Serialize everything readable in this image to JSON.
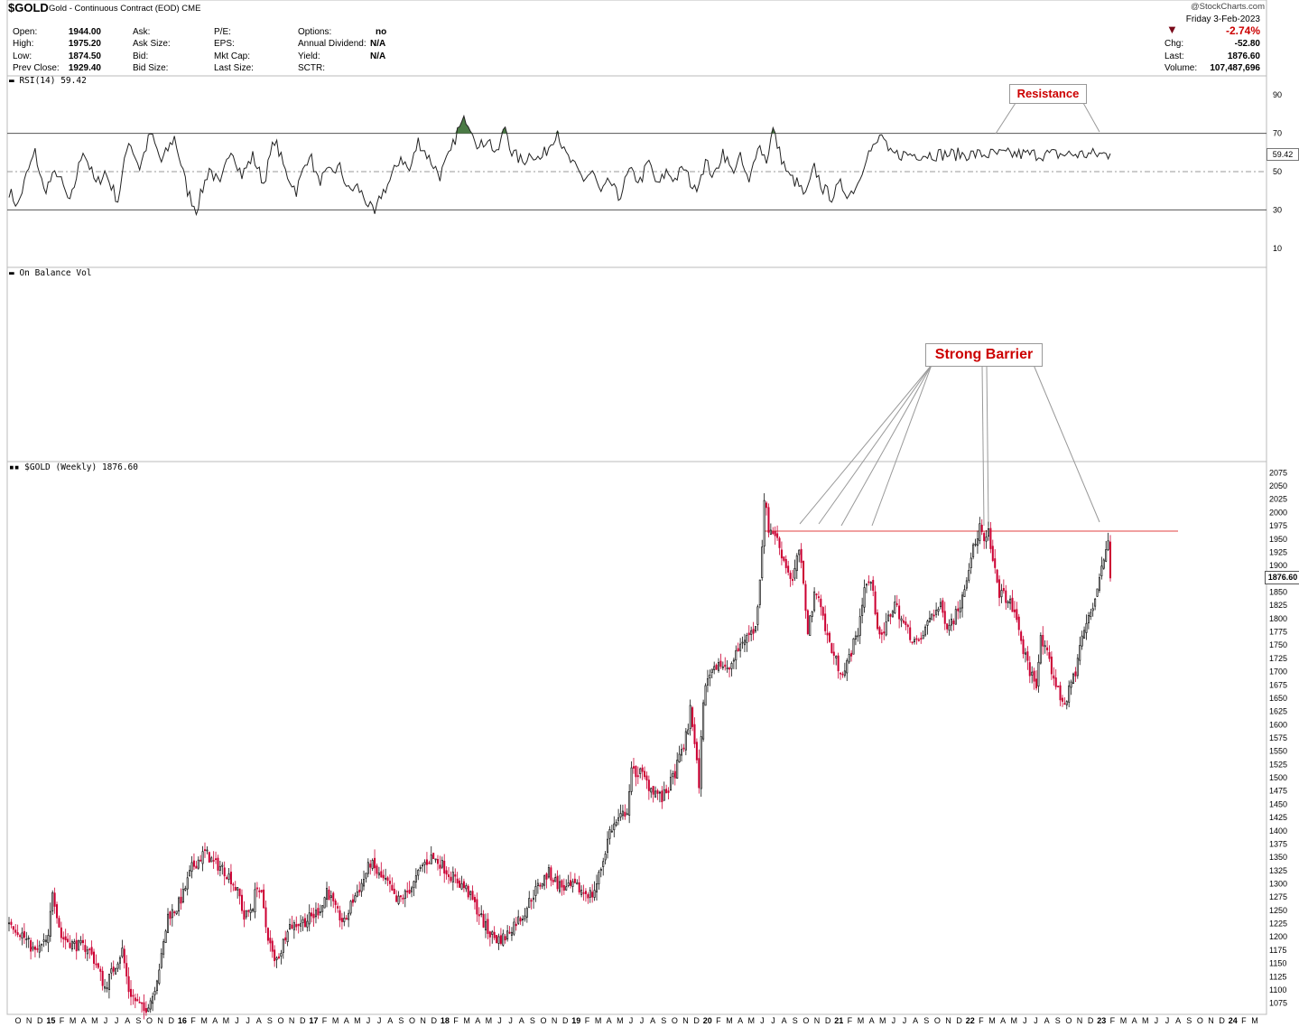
{
  "header": {
    "symbol": "$GOLD",
    "subtitle": "Gold - Continuous Contract (EOD)  CME",
    "brand": "@StockCharts.com",
    "date": "Friday  3-Feb-2023",
    "pct_change": "-2.74%",
    "col1": [
      [
        "Open:",
        "1944.00"
      ],
      [
        "High:",
        "1975.20"
      ],
      [
        "Low:",
        "1874.50"
      ],
      [
        "Prev Close:",
        "1929.40"
      ]
    ],
    "col2": [
      [
        "Ask:",
        ""
      ],
      [
        "Ask Size:",
        ""
      ],
      [
        "Bid:",
        ""
      ],
      [
        "Bid Size:",
        ""
      ]
    ],
    "col3": [
      [
        "P/E:",
        ""
      ],
      [
        "EPS:",
        ""
      ],
      [
        "Mkt Cap:",
        ""
      ],
      [
        "Last Size:",
        ""
      ]
    ],
    "col4": [
      [
        "Options:",
        "no"
      ],
      [
        "Annual Dividend:",
        "N/A"
      ],
      [
        "Yield:",
        "N/A"
      ],
      [
        "SCTR:",
        ""
      ]
    ],
    "col5": [
      [
        "Chg:",
        "-52.80"
      ],
      [
        "Last:",
        "1876.60"
      ],
      [
        "Volume:",
        "107,487,696"
      ]
    ]
  },
  "colors": {
    "up": "#111111",
    "down": "#cc0033",
    "resistance": "#e04040",
    "annotation": "#cc0000",
    "rsi_fill": "#4a7a45"
  },
  "chart_data": [
    {
      "type": "line",
      "label": "RSI(14) 59.42",
      "last_value": "59.42",
      "ylim": [
        0,
        100
      ],
      "yticks": [
        10,
        30,
        50,
        70,
        90
      ],
      "reference_lines": [
        30,
        50,
        70
      ],
      "keypoints": [
        [
          0,
          40
        ],
        [
          4,
          32
        ],
        [
          8,
          48
        ],
        [
          12,
          60
        ],
        [
          16,
          40
        ],
        [
          22,
          50
        ],
        [
          28,
          33
        ],
        [
          34,
          62
        ],
        [
          40,
          43
        ],
        [
          44,
          50
        ],
        [
          50,
          35
        ],
        [
          55,
          67
        ],
        [
          60,
          52
        ],
        [
          65,
          70
        ],
        [
          70,
          55
        ],
        [
          76,
          68
        ],
        [
          82,
          40
        ],
        [
          86,
          30
        ],
        [
          92,
          52
        ],
        [
          97,
          42
        ],
        [
          102,
          63
        ],
        [
          107,
          48
        ],
        [
          112,
          58
        ],
        [
          117,
          44
        ],
        [
          122,
          67
        ],
        [
          127,
          50
        ],
        [
          132,
          40
        ],
        [
          138,
          60
        ],
        [
          142,
          45
        ],
        [
          148,
          50
        ],
        [
          152,
          52
        ],
        [
          156,
          40
        ],
        [
          160,
          42
        ],
        [
          164,
          35
        ],
        [
          168,
          27
        ],
        [
          171,
          38
        ],
        [
          175,
          45
        ],
        [
          180,
          58
        ],
        [
          184,
          50
        ],
        [
          188,
          66
        ],
        [
          193,
          57
        ],
        [
          198,
          48
        ],
        [
          203,
          60
        ],
        [
          206,
          71
        ],
        [
          210,
          78
        ],
        [
          213,
          72
        ],
        [
          216,
          62
        ],
        [
          220,
          68
        ],
        [
          224,
          58
        ],
        [
          228,
          74
        ],
        [
          231,
          60
        ],
        [
          236,
          55
        ],
        [
          240,
          60
        ],
        [
          244,
          56
        ],
        [
          248,
          63
        ],
        [
          252,
          72
        ],
        [
          255,
          60
        ],
        [
          260,
          52
        ],
        [
          264,
          46
        ],
        [
          268,
          50
        ],
        [
          272,
          38
        ],
        [
          276,
          45
        ],
        [
          280,
          36
        ],
        [
          285,
          50
        ],
        [
          290,
          45
        ],
        [
          294,
          55
        ],
        [
          298,
          42
        ],
        [
          302,
          50
        ],
        [
          306,
          46
        ],
        [
          310,
          52
        ],
        [
          315,
          40
        ],
        [
          320,
          55
        ],
        [
          324,
          47
        ],
        [
          328,
          61
        ],
        [
          332,
          50
        ],
        [
          336,
          57
        ],
        [
          340,
          43
        ],
        [
          344,
          65
        ],
        [
          348,
          56
        ],
        [
          351,
          72
        ],
        [
          354,
          60
        ],
        [
          358,
          48
        ],
        [
          362,
          44
        ],
        [
          366,
          37
        ],
        [
          370,
          52
        ],
        [
          374,
          41
        ],
        [
          378,
          37
        ],
        [
          382,
          43
        ],
        [
          386,
          38
        ],
        [
          390,
          44
        ],
        [
          394,
          59
        ],
        [
          398,
          63
        ],
        [
          401,
          70
        ],
        [
          404,
          59
        ]
      ],
      "shaded_above": 70,
      "annotation": "Resistance"
    },
    {
      "type": "line",
      "label": "On Balance Vol",
      "annotation": "Strong Barrier"
    },
    {
      "type": "candlestick",
      "label": "$GOLD (Weekly) 1876.60",
      "last_value": "1876.60",
      "ylim": [
        1062.5,
        2087.5
      ],
      "yticks": [
        1075,
        1100,
        1125,
        1150,
        1175,
        1200,
        1225,
        1250,
        1275,
        1300,
        1325,
        1350,
        1375,
        1400,
        1425,
        1450,
        1475,
        1500,
        1525,
        1550,
        1575,
        1600,
        1625,
        1650,
        1675,
        1700,
        1725,
        1750,
        1775,
        1800,
        1825,
        1850,
        1875,
        1900,
        1925,
        1950,
        1975,
        2000,
        2025,
        2050,
        2075
      ],
      "resistance": 1965,
      "keypoints": [
        [
          0,
          1230
        ],
        [
          6,
          1205
        ],
        [
          12,
          1170
        ],
        [
          18,
          1195
        ],
        [
          20,
          1290
        ],
        [
          24,
          1200
        ],
        [
          30,
          1185
        ],
        [
          36,
          1180
        ],
        [
          40,
          1150
        ],
        [
          44,
          1105
        ],
        [
          48,
          1140
        ],
        [
          52,
          1175
        ],
        [
          55,
          1100
        ],
        [
          58,
          1080
        ],
        [
          62,
          1060
        ],
        [
          66,
          1090
        ],
        [
          70,
          1160
        ],
        [
          73,
          1240
        ],
        [
          77,
          1255
        ],
        [
          80,
          1280
        ],
        [
          84,
          1330
        ],
        [
          88,
          1350
        ],
        [
          90,
          1360
        ],
        [
          94,
          1340
        ],
        [
          98,
          1330
        ],
        [
          102,
          1310
        ],
        [
          106,
          1275
        ],
        [
          108,
          1235
        ],
        [
          112,
          1260
        ],
        [
          114,
          1300
        ],
        [
          116,
          1275
        ],
        [
          118,
          1220
        ],
        [
          120,
          1185
        ],
        [
          122,
          1150
        ],
        [
          125,
          1175
        ],
        [
          128,
          1220
        ],
        [
          132,
          1225
        ],
        [
          136,
          1230
        ],
        [
          140,
          1240
        ],
        [
          144,
          1260
        ],
        [
          146,
          1290
        ],
        [
          150,
          1250
        ],
        [
          154,
          1225
        ],
        [
          158,
          1270
        ],
        [
          162,
          1300
        ],
        [
          166,
          1340
        ],
        [
          170,
          1315
        ],
        [
          174,
          1300
        ],
        [
          178,
          1265
        ],
        [
          182,
          1280
        ],
        [
          186,
          1300
        ],
        [
          190,
          1335
        ],
        [
          194,
          1350
        ],
        [
          198,
          1340
        ],
        [
          202,
          1320
        ],
        [
          206,
          1305
        ],
        [
          210,
          1290
        ],
        [
          214,
          1260
        ],
        [
          217,
          1235
        ],
        [
          220,
          1210
        ],
        [
          224,
          1195
        ],
        [
          228,
          1200
        ],
        [
          232,
          1225
        ],
        [
          236,
          1240
        ],
        [
          240,
          1275
        ],
        [
          244,
          1300
        ],
        [
          248,
          1320
        ],
        [
          252,
          1300
        ],
        [
          256,
          1290
        ],
        [
          260,
          1295
        ],
        [
          264,
          1285
        ],
        [
          268,
          1280
        ],
        [
          270,
          1300
        ],
        [
          273,
          1345
        ],
        [
          276,
          1400
        ],
        [
          280,
          1420
        ],
        [
          284,
          1440
        ],
        [
          286,
          1510
        ],
        [
          290,
          1510
        ],
        [
          294,
          1485
        ],
        [
          298,
          1470
        ],
        [
          300,
          1460
        ],
        [
          303,
          1480
        ],
        [
          306,
          1510
        ],
        [
          309,
          1550
        ],
        [
          312,
          1590
        ],
        [
          313,
          1640
        ],
        [
          315,
          1560
        ],
        [
          317,
          1490
        ],
        [
          319,
          1650
        ],
        [
          322,
          1700
        ],
        [
          326,
          1720
        ],
        [
          330,
          1700
        ],
        [
          334,
          1730
        ],
        [
          337,
          1760
        ],
        [
          340,
          1770
        ],
        [
          343,
          1780
        ],
        [
          345,
          1880
        ],
        [
          346,
          1940
        ],
        [
          347,
          2030
        ],
        [
          349,
          1970
        ],
        [
          352,
          1960
        ],
        [
          356,
          1910
        ],
        [
          360,
          1870
        ],
        [
          363,
          1930
        ],
        [
          365,
          1860
        ],
        [
          367,
          1780
        ],
        [
          370,
          1840
        ],
        [
          372,
          1850
        ],
        [
          375,
          1780
        ],
        [
          378,
          1740
        ],
        [
          381,
          1710
        ],
        [
          384,
          1700
        ],
        [
          387,
          1740
        ],
        [
          390,
          1775
        ],
        [
          393,
          1860
        ],
        [
          396,
          1870
        ],
        [
          399,
          1790
        ],
        [
          401,
          1760
        ],
        [
          404,
          1800
        ],
        [
          407,
          1830
        ],
        [
          411,
          1790
        ],
        [
          414,
          1770
        ],
        [
          418,
          1750
        ],
        [
          421,
          1780
        ],
        [
          424,
          1810
        ],
        [
          428,
          1820
        ],
        [
          431,
          1790
        ],
        [
          434,
          1800
        ],
        [
          437,
          1830
        ],
        [
          440,
          1880
        ],
        [
          442,
          1920
        ],
        [
          444,
          1940
        ],
        [
          446,
          1975
        ],
        [
          448,
          1940
        ],
        [
          450,
          1960
        ],
        [
          452,
          1905
        ],
        [
          455,
          1850
        ],
        [
          458,
          1840
        ],
        [
          461,
          1820
        ],
        [
          464,
          1780
        ],
        [
          466,
          1740
        ],
        [
          469,
          1700
        ],
        [
          472,
          1680
        ],
        [
          474,
          1760
        ],
        [
          477,
          1730
        ],
        [
          480,
          1690
        ],
        [
          483,
          1650
        ],
        [
          486,
          1645
        ],
        [
          488,
          1680
        ],
        [
          490,
          1700
        ],
        [
          492,
          1750
        ],
        [
          495,
          1790
        ],
        [
          498,
          1820
        ],
        [
          500,
          1860
        ],
        [
          502,
          1900
        ],
        [
          504,
          1925
        ],
        [
          505,
          1945
        ],
        [
          506,
          1877
        ]
      ],
      "x_tick_labels": [
        "O",
        "N",
        "D",
        "15",
        "F",
        "M",
        "A",
        "M",
        "J",
        "J",
        "A",
        "S",
        "O",
        "N",
        "D",
        "16",
        "F",
        "M",
        "A",
        "M",
        "J",
        "J",
        "A",
        "S",
        "O",
        "N",
        "D",
        "17",
        "F",
        "M",
        "A",
        "M",
        "J",
        "J",
        "A",
        "S",
        "O",
        "N",
        "D",
        "18",
        "F",
        "M",
        "A",
        "M",
        "J",
        "J",
        "A",
        "S",
        "O",
        "N",
        "D",
        "19",
        "F",
        "M",
        "A",
        "M",
        "J",
        "J",
        "A",
        "S",
        "O",
        "N",
        "D",
        "20",
        "F",
        "M",
        "A",
        "M",
        "J",
        "J",
        "A",
        "S",
        "O",
        "N",
        "D",
        "21",
        "F",
        "M",
        "A",
        "M",
        "J",
        "J",
        "A",
        "S",
        "O",
        "N",
        "D",
        "22",
        "F",
        "M",
        "A",
        "M",
        "J",
        "J",
        "A",
        "S",
        "O",
        "N",
        "D",
        "23",
        "F",
        "M",
        "A",
        "M",
        "J",
        "J",
        "A",
        "S",
        "O",
        "N",
        "D",
        "24",
        "F",
        "M"
      ]
    }
  ]
}
